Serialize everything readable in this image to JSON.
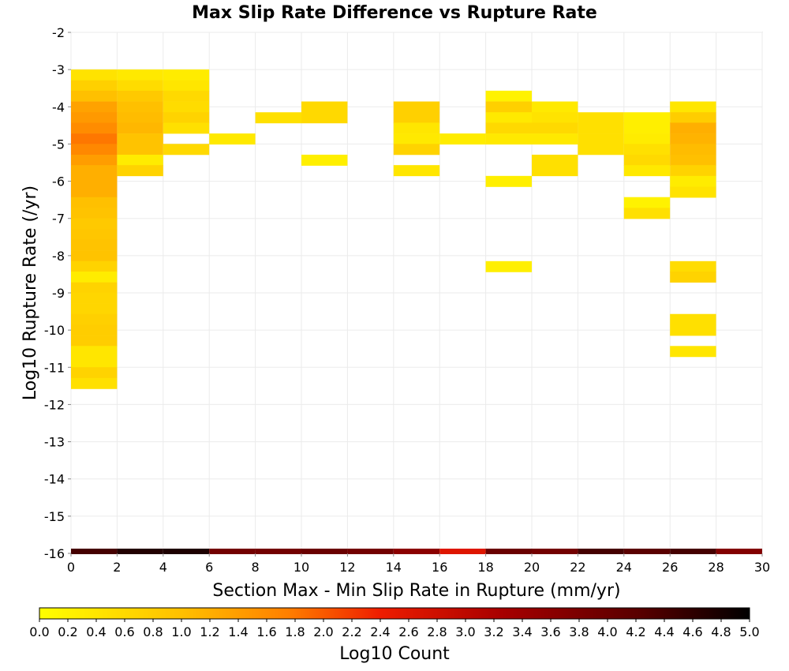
{
  "chart_data": {
    "type": "heatmap",
    "title": "Max Slip Rate Difference vs Rupture Rate",
    "xlabel": "Section Max - Min Slip Rate in Rupture (mm/yr)",
    "ylabel": "Log10 Rupture Rate (/yr)",
    "xlim": [
      0,
      30
    ],
    "ylim": [
      -16,
      -2
    ],
    "x_ticks": [
      "0",
      "2",
      "4",
      "6",
      "8",
      "10",
      "12",
      "14",
      "16",
      "18",
      "20",
      "22",
      "24",
      "26",
      "28",
      "30"
    ],
    "y_ticks": [
      "-2",
      "-3",
      "-4",
      "-5",
      "-6",
      "-7",
      "-8",
      "-9",
      "-10",
      "-11",
      "-12",
      "-13",
      "-14",
      "-15",
      "-16"
    ],
    "grid": true,
    "colorbar": {
      "label": "Log10 Count",
      "range": [
        0,
        5
      ],
      "ticks": [
        "0.0",
        "0.2",
        "0.4",
        "0.6",
        "0.8",
        "1.0",
        "1.2",
        "1.4",
        "1.6",
        "1.8",
        "2.0",
        "2.2",
        "2.4",
        "2.6",
        "2.8",
        "3.0",
        "3.2",
        "3.4",
        "3.6",
        "3.8",
        "4.0",
        "4.2",
        "4.4",
        "4.6",
        "4.8",
        "5.0"
      ],
      "placement": "bottom"
    },
    "bin_width_x": 2,
    "bin_height_y": 0.2857,
    "cells": [
      {
        "x": 1,
        "y": -3.14,
        "v": 0.45
      },
      {
        "x": 1,
        "y": -3.43,
        "v": 0.75
      },
      {
        "x": 1,
        "y": -3.71,
        "v": 1.0
      },
      {
        "x": 1,
        "y": -4.0,
        "v": 1.35
      },
      {
        "x": 1,
        "y": -4.29,
        "v": 1.45
      },
      {
        "x": 1,
        "y": -4.57,
        "v": 1.6
      },
      {
        "x": 1,
        "y": -4.86,
        "v": 1.8
      },
      {
        "x": 1,
        "y": -5.14,
        "v": 1.65
      },
      {
        "x": 1,
        "y": -5.43,
        "v": 1.4
      },
      {
        "x": 1,
        "y": -5.71,
        "v": 1.2
      },
      {
        "x": 1,
        "y": -6.0,
        "v": 1.2
      },
      {
        "x": 1,
        "y": -6.29,
        "v": 1.2
      },
      {
        "x": 1,
        "y": -6.57,
        "v": 1.0
      },
      {
        "x": 1,
        "y": -6.86,
        "v": 0.95
      },
      {
        "x": 1,
        "y": -7.14,
        "v": 0.85
      },
      {
        "x": 1,
        "y": -7.43,
        "v": 0.9
      },
      {
        "x": 1,
        "y": -7.71,
        "v": 0.95
      },
      {
        "x": 1,
        "y": -8.0,
        "v": 0.95
      },
      {
        "x": 1,
        "y": -8.29,
        "v": 0.7
      },
      {
        "x": 1,
        "y": -8.57,
        "v": 0.3
      },
      {
        "x": 1,
        "y": -8.86,
        "v": 0.7
      },
      {
        "x": 1,
        "y": -9.14,
        "v": 0.65
      },
      {
        "x": 1,
        "y": -9.43,
        "v": 0.65
      },
      {
        "x": 1,
        "y": -9.71,
        "v": 0.75
      },
      {
        "x": 1,
        "y": -10.0,
        "v": 0.8
      },
      {
        "x": 1,
        "y": -10.29,
        "v": 0.8
      },
      {
        "x": 1,
        "y": -10.57,
        "v": 0.4
      },
      {
        "x": 1,
        "y": -10.86,
        "v": 0.4
      },
      {
        "x": 1,
        "y": -11.14,
        "v": 0.7
      },
      {
        "x": 1,
        "y": -11.43,
        "v": 0.5
      },
      {
        "x": 3,
        "y": -3.14,
        "v": 0.35
      },
      {
        "x": 3,
        "y": -3.43,
        "v": 0.55
      },
      {
        "x": 3,
        "y": -3.71,
        "v": 0.85
      },
      {
        "x": 3,
        "y": -4.0,
        "v": 1.0
      },
      {
        "x": 3,
        "y": -4.29,
        "v": 1.05
      },
      {
        "x": 3,
        "y": -4.57,
        "v": 1.1
      },
      {
        "x": 3,
        "y": -4.86,
        "v": 0.95
      },
      {
        "x": 3,
        "y": -5.14,
        "v": 0.95
      },
      {
        "x": 3,
        "y": -5.43,
        "v": 0.3
      },
      {
        "x": 3,
        "y": -5.71,
        "v": 0.7
      },
      {
        "x": 5,
        "y": -3.14,
        "v": 0.3
      },
      {
        "x": 5,
        "y": -3.43,
        "v": 0.4
      },
      {
        "x": 5,
        "y": -3.71,
        "v": 0.6
      },
      {
        "x": 5,
        "y": -4.0,
        "v": 0.55
      },
      {
        "x": 5,
        "y": -4.29,
        "v": 0.7
      },
      {
        "x": 5,
        "y": -4.57,
        "v": 0.5
      },
      {
        "x": 5,
        "y": -5.14,
        "v": 0.6
      },
      {
        "x": 7,
        "y": -4.86,
        "v": 0.35
      },
      {
        "x": 9,
        "y": -4.29,
        "v": 0.5
      },
      {
        "x": 11,
        "y": -4.0,
        "v": 0.6
      },
      {
        "x": 11,
        "y": -4.29,
        "v": 0.6
      },
      {
        "x": 11,
        "y": -5.43,
        "v": 0.25
      },
      {
        "x": 15,
        "y": -4.0,
        "v": 0.75
      },
      {
        "x": 15,
        "y": -4.29,
        "v": 0.75
      },
      {
        "x": 15,
        "y": -4.57,
        "v": 0.4
      },
      {
        "x": 15,
        "y": -4.86,
        "v": 0.35
      },
      {
        "x": 15,
        "y": -5.14,
        "v": 0.7
      },
      {
        "x": 15,
        "y": -5.71,
        "v": 0.4
      },
      {
        "x": 17,
        "y": -4.86,
        "v": 0.3
      },
      {
        "x": 19,
        "y": -3.71,
        "v": 0.2
      },
      {
        "x": 19,
        "y": -4.0,
        "v": 0.75
      },
      {
        "x": 19,
        "y": -4.29,
        "v": 0.35
      },
      {
        "x": 19,
        "y": -4.57,
        "v": 0.6
      },
      {
        "x": 19,
        "y": -4.86,
        "v": 0.35
      },
      {
        "x": 19,
        "y": -6.0,
        "v": 0.25
      },
      {
        "x": 19,
        "y": -8.29,
        "v": 0.25
      },
      {
        "x": 21,
        "y": -4.0,
        "v": 0.35
      },
      {
        "x": 21,
        "y": -4.29,
        "v": 0.45
      },
      {
        "x": 21,
        "y": -4.57,
        "v": 0.6
      },
      {
        "x": 21,
        "y": -4.86,
        "v": 0.35
      },
      {
        "x": 21,
        "y": -5.43,
        "v": 0.5
      },
      {
        "x": 21,
        "y": -5.71,
        "v": 0.5
      },
      {
        "x": 23,
        "y": -4.29,
        "v": 0.5
      },
      {
        "x": 23,
        "y": -4.57,
        "v": 0.5
      },
      {
        "x": 23,
        "y": -4.86,
        "v": 0.5
      },
      {
        "x": 23,
        "y": -5.14,
        "v": 0.5
      },
      {
        "x": 25,
        "y": -4.29,
        "v": 0.25
      },
      {
        "x": 25,
        "y": -4.57,
        "v": 0.25
      },
      {
        "x": 25,
        "y": -4.86,
        "v": 0.3
      },
      {
        "x": 25,
        "y": -5.14,
        "v": 0.5
      },
      {
        "x": 25,
        "y": -5.43,
        "v": 0.6
      },
      {
        "x": 25,
        "y": -5.71,
        "v": 0.35
      },
      {
        "x": 25,
        "y": -6.57,
        "v": 0.2
      },
      {
        "x": 25,
        "y": -6.86,
        "v": 0.5
      },
      {
        "x": 27,
        "y": -4.0,
        "v": 0.4
      },
      {
        "x": 27,
        "y": -4.29,
        "v": 0.8
      },
      {
        "x": 27,
        "y": -4.57,
        "v": 1.2
      },
      {
        "x": 27,
        "y": -4.86,
        "v": 1.15
      },
      {
        "x": 27,
        "y": -5.14,
        "v": 1.05
      },
      {
        "x": 27,
        "y": -5.43,
        "v": 1.0
      },
      {
        "x": 27,
        "y": -5.71,
        "v": 0.7
      },
      {
        "x": 27,
        "y": -6.0,
        "v": 0.3
      },
      {
        "x": 27,
        "y": -6.29,
        "v": 0.45
      },
      {
        "x": 27,
        "y": -8.29,
        "v": 0.55
      },
      {
        "x": 27,
        "y": -8.57,
        "v": 0.7
      },
      {
        "x": 27,
        "y": -9.71,
        "v": 0.5
      },
      {
        "x": 27,
        "y": -10.0,
        "v": 0.5
      },
      {
        "x": 27,
        "y": -10.57,
        "v": 0.4
      }
    ],
    "bottom_row": {
      "y": -16,
      "cells": [
        {
          "x": 1,
          "v": 4.4
        },
        {
          "x": 3,
          "v": 4.7
        },
        {
          "x": 5,
          "v": 4.75
        },
        {
          "x": 7,
          "v": 3.9
        },
        {
          "x": 9,
          "v": 3.9
        },
        {
          "x": 11,
          "v": 4.0
        },
        {
          "x": 13,
          "v": 3.9
        },
        {
          "x": 15,
          "v": 3.6
        },
        {
          "x": 17,
          "v": 2.6
        },
        {
          "x": 19,
          "v": 4.0
        },
        {
          "x": 21,
          "v": 3.9
        },
        {
          "x": 23,
          "v": 4.4
        },
        {
          "x": 25,
          "v": 4.2
        },
        {
          "x": 27,
          "v": 4.4
        },
        {
          "x": 29,
          "v": 3.7
        }
      ]
    }
  }
}
